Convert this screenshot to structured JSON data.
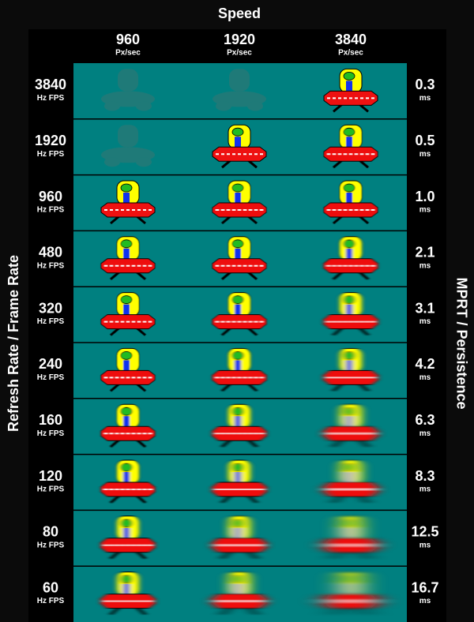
{
  "title": "Speed",
  "left_label": "Refresh Rate / Frame Rate",
  "right_label": "MPRT / Persistence",
  "columns": [
    {
      "speed": "960",
      "unit": "Px/sec"
    },
    {
      "speed": "1920",
      "unit": "Px/sec"
    },
    {
      "speed": "3840",
      "unit": "Px/sec"
    }
  ],
  "rows": [
    {
      "rate": "3840",
      "rate_unit": "Hz FPS",
      "mprt": "0.3",
      "mprt_unit": "ms"
    },
    {
      "rate": "1920",
      "rate_unit": "Hz FPS",
      "mprt": "0.5",
      "mprt_unit": "ms"
    },
    {
      "rate": "960",
      "rate_unit": "Hz FPS",
      "mprt": "1.0",
      "mprt_unit": "ms"
    },
    {
      "rate": "480",
      "rate_unit": "Hz FPS",
      "mprt": "2.1",
      "mprt_unit": "ms"
    },
    {
      "rate": "320",
      "rate_unit": "Hz FPS",
      "mprt": "3.1",
      "mprt_unit": "ms"
    },
    {
      "rate": "240",
      "rate_unit": "Hz FPS",
      "mprt": "4.2",
      "mprt_unit": "ms"
    },
    {
      "rate": "160",
      "rate_unit": "Hz FPS",
      "mprt": "6.3",
      "mprt_unit": "ms"
    },
    {
      "rate": "120",
      "rate_unit": "Hz FPS",
      "mprt": "8.3",
      "mprt_unit": "ms"
    },
    {
      "rate": "80",
      "rate_unit": "Hz FPS",
      "mprt": "12.5",
      "mprt_unit": "ms"
    },
    {
      "rate": "60",
      "rate_unit": "Hz FPS",
      "mprt": "16.7",
      "mprt_unit": "ms"
    }
  ]
}
